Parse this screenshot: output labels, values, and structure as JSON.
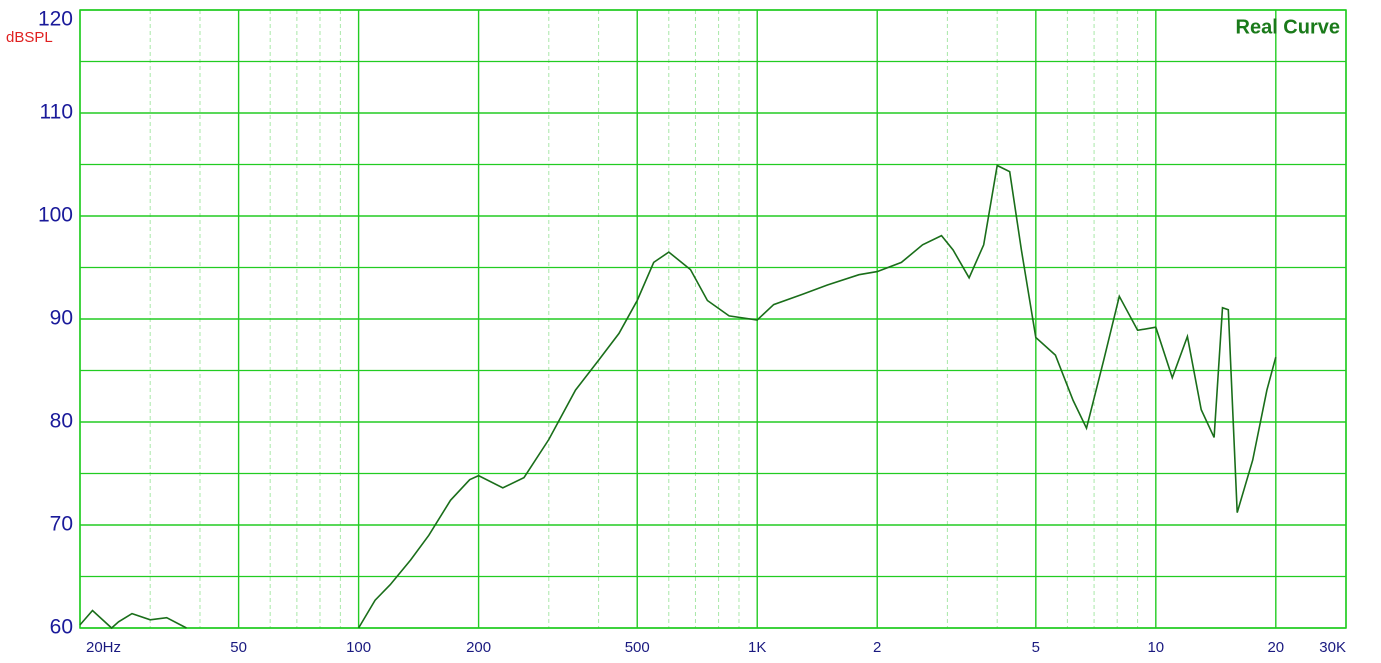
{
  "chart_data": {
    "type": "line",
    "title": "Real Curve",
    "y_label": "dBSPL",
    "log_x": true,
    "grid": true,
    "xlim": [
      20,
      30000
    ],
    "ylim": [
      60,
      120
    ],
    "xticks": [
      {
        "value": 20,
        "label": "20Hz"
      },
      50,
      100,
      200,
      500,
      {
        "value": 1000,
        "label": "1K"
      },
      {
        "value": 2000,
        "label": "2"
      },
      {
        "value": 5000,
        "label": "5"
      },
      {
        "value": 10000,
        "label": "10"
      },
      {
        "value": 20000,
        "label": "20"
      },
      {
        "value": 30000,
        "label": "30K"
      }
    ],
    "yticks": [
      60,
      70,
      80,
      90,
      100,
      110,
      120
    ],
    "xminor": [
      30,
      40,
      60,
      70,
      80,
      90,
      300,
      400,
      600,
      700,
      800,
      900,
      3000,
      4000,
      6000,
      7000,
      8000,
      9000
    ],
    "yminor": [
      65,
      75,
      85,
      95,
      105,
      115
    ],
    "series": [
      {
        "name": "Real Curve",
        "color": "#1a6e1a",
        "x": [
          20,
          21.5,
          24,
          25,
          27,
          30,
          33,
          37,
          60,
          100,
          110,
          120,
          135,
          150,
          170,
          190,
          200,
          230,
          260,
          300,
          350,
          400,
          450,
          500,
          550,
          600,
          680,
          750,
          850,
          1000,
          1100,
          1300,
          1500,
          1800,
          2000,
          2300,
          2600,
          2900,
          3100,
          3400,
          3700,
          4000,
          4300,
          4600,
          5000,
          5600,
          6200,
          6700,
          7400,
          8100,
          9000,
          10000,
          11000,
          12000,
          13000,
          14000,
          14700,
          15200,
          16000,
          17500,
          19000,
          20000
        ],
        "values": [
          60.3,
          61.7,
          60.0,
          60.6,
          61.4,
          60.8,
          61.0,
          60.0,
          null,
          60.0,
          62.7,
          64.2,
          66.6,
          69.0,
          72.4,
          74.4,
          74.8,
          73.6,
          74.6,
          78.3,
          83.1,
          86.0,
          88.6,
          91.8,
          95.5,
          96.5,
          94.8,
          91.8,
          90.3,
          89.9,
          91.4,
          92.4,
          93.3,
          94.3,
          94.6,
          95.5,
          97.2,
          98.1,
          96.7,
          94.0,
          97.2,
          104.9,
          104.3,
          96.7,
          88.2,
          86.5,
          82.1,
          79.4,
          86.0,
          92.2,
          88.9,
          89.2,
          84.3,
          88.3,
          81.2,
          78.5,
          91.1,
          90.9,
          71.2,
          76.3,
          83.1,
          86.3
        ]
      }
    ]
  }
}
